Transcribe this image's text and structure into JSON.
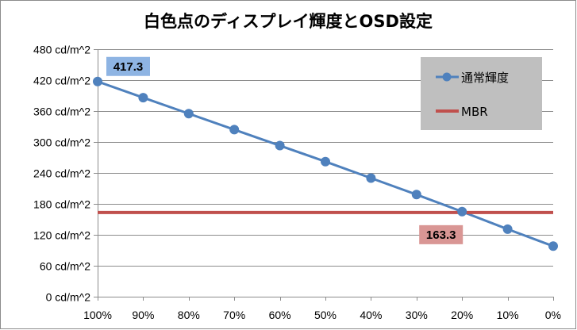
{
  "chart_data": {
    "type": "line",
    "title": "白色点のディスプレイ輝度とOSD設定",
    "categories": [
      "100%",
      "90%",
      "80%",
      "70%",
      "60%",
      "50%",
      "40%",
      "30%",
      "20%",
      "10%",
      "0%"
    ],
    "y_ticks": [
      "0 cd/m^2",
      "60 cd/m^2",
      "120 cd/m^2",
      "180 cd/m^2",
      "240 cd/m^2",
      "300 cd/m^2",
      "360 cd/m^2",
      "420 cd/m^2",
      "480 cd/m^2"
    ],
    "ylim": [
      0,
      480
    ],
    "y_step": 60,
    "grid": "horizontal",
    "legend_position": "top-right",
    "series": [
      {
        "name": "通常輝度",
        "color": "#4f81bd",
        "values": [
          417.3,
          386,
          355,
          324,
          293,
          262,
          230,
          198,
          165,
          131,
          98
        ]
      },
      {
        "name": "MBR",
        "color": "#c0504d",
        "values": [
          163.3,
          163.3,
          163.3,
          163.3,
          163.3,
          163.3,
          163.3,
          163.3,
          163.3,
          163.3,
          163.3
        ]
      }
    ],
    "annotations": [
      {
        "text": "417.3",
        "series": 0,
        "index": 0,
        "color": "#8eb4e3"
      },
      {
        "text": "163.3",
        "series": 1,
        "index": 8,
        "color": "#d99694"
      }
    ]
  }
}
